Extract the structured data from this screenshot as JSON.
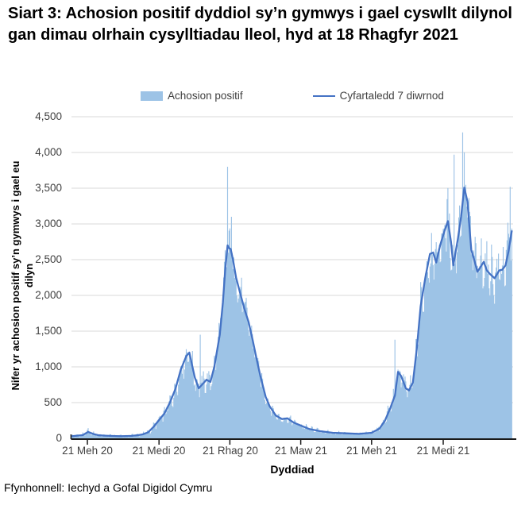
{
  "title": "Siart 3: Achosion positif dyddiol sy’n gymwys i gael cyswllt dilynol gan dimau olrhain cysylltiadau lleol, hyd at 18 Rhagfyr 2021",
  "footer": "Ffynhonnell: Iechyd a Gofal Digidol Cymru",
  "legend": {
    "items": [
      {
        "label": "Achosion positif",
        "swatch": "area-swatch",
        "color": "#9DC3E6"
      },
      {
        "label": "Cyfartaledd 7 diwrnod",
        "swatch": "line-swatch",
        "color": "#4472C4"
      }
    ]
  },
  "colors": {
    "bars": "#9DC3E6",
    "line": "#4472C4",
    "grid": "#D9D9D9",
    "axis": "#1a1a1a",
    "tick_text": "#404040"
  },
  "chart_data": {
    "type": "area",
    "subtype": "daily bars with 7-day average line",
    "title": "Siart 3: Achosion positif dyddiol sy’n gymwys i gael cyswllt dilynol gan dimau olrhain cysylltiadau lleol, hyd at 18 Rhagfyr 2021",
    "xlabel": "Dyddiad",
    "ylabel": "Nifer yr achosion positif sy’n gymwys i gael eu dilyn",
    "ylabel_lines": [
      "Nifer yr achosion positif sy’n gymwys i gael eu",
      "dilyn"
    ],
    "ylim": [
      0,
      4500
    ],
    "y_tick_step": 500,
    "y_tick_labels": [
      "4,500",
      "4,000",
      "3,500",
      "3,000",
      "2,500",
      "2,000",
      "1,500",
      "1,000",
      "500",
      "0"
    ],
    "x_tick_labels": [
      "21 Meh 20",
      "21 Medi 20",
      "21 Rhag 20",
      "21 Maw 21",
      "21 Meh 21",
      "21 Medi 21"
    ],
    "x_tick_days": [
      20,
      112,
      203,
      294,
      385,
      477
    ],
    "start_date": "2020-06-01",
    "end_date": "2021-12-18",
    "grid": "horizontal-only",
    "legend_position": "top-center",
    "series_names": [
      "Achosion positif",
      "Cyfartaledd 7 diwrnod"
    ],
    "avg_series_day_avg_hi_lo": [
      [
        0,
        30,
        60,
        10
      ],
      [
        7,
        38,
        75,
        12
      ],
      [
        14,
        45,
        90,
        15
      ],
      [
        21,
        90,
        155,
        40
      ],
      [
        28,
        60,
        100,
        25
      ],
      [
        35,
        42,
        72,
        15
      ],
      [
        42,
        38,
        65,
        14
      ],
      [
        49,
        35,
        60,
        14
      ],
      [
        56,
        32,
        58,
        12
      ],
      [
        63,
        30,
        55,
        12
      ],
      [
        70,
        32,
        58,
        12
      ],
      [
        77,
        35,
        65,
        15
      ],
      [
        84,
        42,
        75,
        18
      ],
      [
        91,
        55,
        95,
        25
      ],
      [
        98,
        85,
        140,
        40
      ],
      [
        105,
        160,
        230,
        90
      ],
      [
        112,
        255,
        340,
        150
      ],
      [
        119,
        350,
        450,
        220
      ],
      [
        126,
        500,
        640,
        330
      ],
      [
        133,
        690,
        860,
        480
      ],
      [
        140,
        960,
        1150,
        700
      ],
      [
        147,
        1150,
        1380,
        900
      ],
      [
        151,
        1200,
        1420,
        950
      ],
      [
        155,
        1000,
        1250,
        750
      ],
      [
        158,
        850,
        1080,
        620
      ],
      [
        163,
        700,
        900,
        500
      ],
      [
        168,
        760,
        950,
        550
      ],
      [
        173,
        820,
        1000,
        600
      ],
      [
        178,
        790,
        980,
        580
      ],
      [
        183,
        1000,
        1250,
        750
      ],
      [
        190,
        1450,
        1800,
        1100
      ],
      [
        194,
        1900,
        2300,
        1500
      ],
      [
        197,
        2350,
        2750,
        1900
      ],
      [
        200,
        2700,
        3000,
        2300
      ],
      [
        202,
        2660,
        3050,
        2250
      ],
      [
        204,
        2650,
        3100,
        2200
      ],
      [
        207,
        2500,
        2900,
        2050
      ],
      [
        211,
        2250,
        2600,
        1800
      ],
      [
        217,
        2000,
        2350,
        1600
      ],
      [
        222,
        1800,
        2100,
        1450
      ],
      [
        227,
        1630,
        1900,
        1300
      ],
      [
        232,
        1390,
        1650,
        1100
      ],
      [
        237,
        1130,
        1350,
        900
      ],
      [
        242,
        880,
        1060,
        700
      ],
      [
        249,
        580,
        720,
        450
      ],
      [
        254,
        450,
        560,
        340
      ],
      [
        262,
        320,
        410,
        240
      ],
      [
        270,
        270,
        350,
        200
      ],
      [
        277,
        280,
        360,
        200
      ],
      [
        285,
        220,
        290,
        160
      ],
      [
        293,
        185,
        250,
        130
      ],
      [
        305,
        130,
        180,
        90
      ],
      [
        319,
        100,
        140,
        65
      ],
      [
        335,
        78,
        110,
        50
      ],
      [
        352,
        70,
        100,
        45
      ],
      [
        369,
        62,
        90,
        40
      ],
      [
        385,
        78,
        115,
        50
      ],
      [
        395,
        135,
        190,
        90
      ],
      [
        402,
        245,
        330,
        170
      ],
      [
        409,
        420,
        560,
        300
      ],
      [
        415,
        600,
        790,
        450
      ],
      [
        419,
        930,
        1150,
        700
      ],
      [
        423,
        870,
        1080,
        650
      ],
      [
        429,
        700,
        880,
        520
      ],
      [
        433,
        670,
        850,
        500
      ],
      [
        438,
        780,
        980,
        580
      ],
      [
        443,
        1250,
        1550,
        950
      ],
      [
        448,
        1850,
        2250,
        1450
      ],
      [
        454,
        2250,
        2700,
        1800
      ],
      [
        460,
        2580,
        3050,
        2100
      ],
      [
        464,
        2600,
        3100,
        2150
      ],
      [
        468,
        2460,
        2900,
        2000
      ],
      [
        473,
        2700,
        3200,
        2250
      ],
      [
        478,
        2880,
        3400,
        2400
      ],
      [
        483,
        3040,
        3550,
        2550
      ],
      [
        487,
        2750,
        3250,
        2300
      ],
      [
        490,
        2420,
        2900,
        2000
      ],
      [
        496,
        2800,
        3300,
        2350
      ],
      [
        500,
        3100,
        3650,
        2600
      ],
      [
        504,
        3510,
        4050,
        2950
      ],
      [
        508,
        3320,
        3900,
        2800
      ],
      [
        513,
        2640,
        3150,
        2200
      ],
      [
        518,
        2450,
        2950,
        2050
      ],
      [
        521,
        2330,
        2800,
        1950
      ],
      [
        525,
        2400,
        2900,
        2000
      ],
      [
        529,
        2470,
        2950,
        2050
      ],
      [
        533,
        2350,
        2850,
        1950
      ],
      [
        537,
        2300,
        2800,
        1900
      ],
      [
        543,
        2240,
        2750,
        1850
      ],
      [
        549,
        2350,
        2850,
        1950
      ],
      [
        553,
        2360,
        2900,
        1950
      ],
      [
        557,
        2420,
        2950,
        2000
      ],
      [
        561,
        2620,
        3150,
        2150
      ],
      [
        564,
        2830,
        3200,
        2400
      ],
      [
        565,
        2900,
        3150,
        2500
      ]
    ],
    "notable_daily_spikes_day_value": [
      [
        165,
        1450
      ],
      [
        200,
        3800
      ],
      [
        205,
        3100
      ],
      [
        415,
        1380
      ],
      [
        491,
        3970
      ],
      [
        502,
        4280
      ],
      [
        563,
        3520
      ]
    ]
  }
}
